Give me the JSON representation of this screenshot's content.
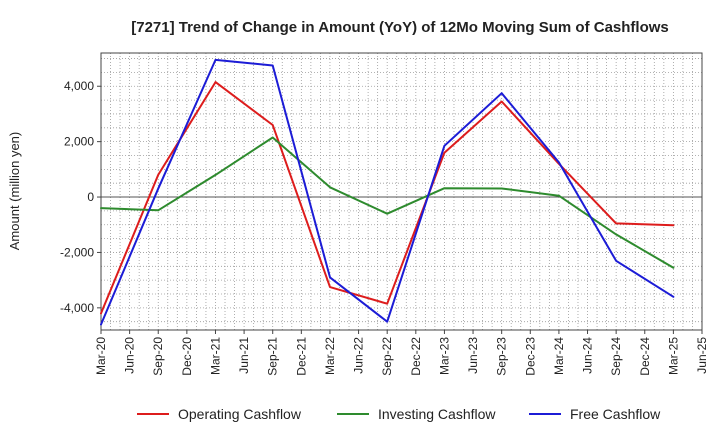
{
  "chart_data": {
    "type": "line",
    "title": "[7271]  Trend of Change in Amount (YoY) of 12Mo Moving Sum of Cashflows",
    "xlabel": "",
    "ylabel": "Amount (million yen)",
    "ylim": [
      -4800,
      5200
    ],
    "yticks": [
      -4000,
      -2000,
      0,
      2000,
      4000
    ],
    "ytick_labels": [
      "-4,000",
      "-2,000",
      "0",
      "2,000",
      "4,000"
    ],
    "categories": [
      "Mar-20",
      "Jun-20",
      "Sep-20",
      "Dec-20",
      "Mar-21",
      "Jun-21",
      "Sep-21",
      "Dec-21",
      "Mar-22",
      "Jun-22",
      "Sep-22",
      "Dec-22",
      "Mar-23",
      "Jun-23",
      "Sep-23",
      "Dec-23",
      "Mar-24",
      "Jun-24",
      "Sep-24",
      "Dec-24",
      "Mar-25",
      "Jun-25"
    ],
    "grid": true,
    "legend": "bottom",
    "series": [
      {
        "name": "Operating Cashflow",
        "color": "#dd1c1c",
        "values": [
          -4200,
          null,
          800,
          null,
          4150,
          null,
          2600,
          null,
          -3250,
          null,
          -3850,
          null,
          1600,
          null,
          3450,
          null,
          1200,
          null,
          -950,
          null,
          -1020,
          null
        ]
      },
      {
        "name": "Investing Cashflow",
        "color": "#2e8b2e",
        "values": [
          -400,
          null,
          -480,
          null,
          800,
          null,
          2150,
          null,
          350,
          null,
          -600,
          null,
          320,
          null,
          310,
          null,
          50,
          null,
          -1350,
          null,
          -2550,
          null
        ]
      },
      {
        "name": "Free Cashflow",
        "color": "#1c1cd6",
        "values": [
          -4600,
          null,
          300,
          null,
          4950,
          null,
          4750,
          null,
          -2900,
          null,
          -4500,
          null,
          1850,
          null,
          3750,
          null,
          1250,
          null,
          -2300,
          null,
          -3600,
          null
        ]
      }
    ]
  }
}
